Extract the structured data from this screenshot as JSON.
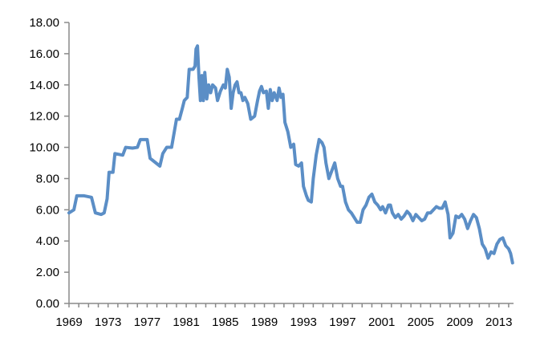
{
  "chart_data": {
    "type": "line",
    "title": "",
    "xlabel": "",
    "ylabel": "",
    "ylim": [
      0,
      18
    ],
    "xlim": [
      1969,
      2014.5
    ],
    "grid": false,
    "legend": "none",
    "y_ticks": [
      "0.00",
      "2.00",
      "4.00",
      "6.00",
      "8.00",
      "10.00",
      "12.00",
      "14.00",
      "16.00",
      "18.00"
    ],
    "x_ticks": [
      "1969",
      "1973",
      "1977",
      "1981",
      "1985",
      "1989",
      "1993",
      "1997",
      "2001",
      "2005",
      "2009",
      "2013"
    ],
    "series": [
      {
        "color": "#5b8ec6",
        "points": [
          [
            1969.0,
            5.8
          ],
          [
            1969.5,
            6.0
          ],
          [
            1969.8,
            6.9
          ],
          [
            1970.5,
            6.9
          ],
          [
            1971.3,
            6.8
          ],
          [
            1971.7,
            5.8
          ],
          [
            1972.3,
            5.7
          ],
          [
            1972.6,
            5.8
          ],
          [
            1972.9,
            6.7
          ],
          [
            1973.1,
            8.4
          ],
          [
            1973.5,
            8.4
          ],
          [
            1973.7,
            9.6
          ],
          [
            1974.5,
            9.5
          ],
          [
            1974.8,
            10.0
          ],
          [
            1975.5,
            9.95
          ],
          [
            1976.0,
            10.0
          ],
          [
            1976.3,
            10.5
          ],
          [
            1977.0,
            10.5
          ],
          [
            1977.3,
            9.3
          ],
          [
            1977.9,
            9.0
          ],
          [
            1978.3,
            8.8
          ],
          [
            1978.6,
            9.6
          ],
          [
            1979.0,
            10.0
          ],
          [
            1979.5,
            10.0
          ],
          [
            1980.0,
            11.8
          ],
          [
            1980.3,
            11.8
          ],
          [
            1980.6,
            12.5
          ],
          [
            1980.8,
            13.0
          ],
          [
            1981.1,
            13.2
          ],
          [
            1981.3,
            15.0
          ],
          [
            1981.7,
            15.0
          ],
          [
            1981.9,
            15.2
          ],
          [
            1982.0,
            16.3
          ],
          [
            1982.15,
            16.5
          ],
          [
            1982.3,
            14.5
          ],
          [
            1982.45,
            13.0
          ],
          [
            1982.6,
            14.6
          ],
          [
            1982.75,
            13.0
          ],
          [
            1982.9,
            14.8
          ],
          [
            1983.1,
            13.1
          ],
          [
            1983.3,
            14.0
          ],
          [
            1983.5,
            13.5
          ],
          [
            1983.7,
            14.0
          ],
          [
            1984.0,
            13.8
          ],
          [
            1984.2,
            13.0
          ],
          [
            1984.5,
            13.6
          ],
          [
            1984.8,
            14.0
          ],
          [
            1985.0,
            13.8
          ],
          [
            1985.2,
            15.0
          ],
          [
            1985.4,
            14.5
          ],
          [
            1985.6,
            12.5
          ],
          [
            1985.8,
            13.5
          ],
          [
            1986.0,
            14.0
          ],
          [
            1986.2,
            14.2
          ],
          [
            1986.4,
            13.5
          ],
          [
            1986.6,
            13.5
          ],
          [
            1986.8,
            13.0
          ],
          [
            1987.0,
            13.2
          ],
          [
            1987.3,
            12.8
          ],
          [
            1987.6,
            11.8
          ],
          [
            1988.0,
            12.0
          ],
          [
            1988.3,
            13.0
          ],
          [
            1988.5,
            13.6
          ],
          [
            1988.7,
            13.9
          ],
          [
            1988.9,
            13.5
          ],
          [
            1989.2,
            13.6
          ],
          [
            1989.4,
            12.5
          ],
          [
            1989.6,
            13.7
          ],
          [
            1989.8,
            13.0
          ],
          [
            1990.0,
            13.5
          ],
          [
            1990.3,
            13.0
          ],
          [
            1990.5,
            13.8
          ],
          [
            1990.7,
            13.2
          ],
          [
            1990.9,
            13.4
          ],
          [
            1991.1,
            11.6
          ],
          [
            1991.4,
            11.0
          ],
          [
            1991.7,
            10.0
          ],
          [
            1992.0,
            10.2
          ],
          [
            1992.2,
            8.9
          ],
          [
            1992.5,
            8.8
          ],
          [
            1992.8,
            9.0
          ],
          [
            1993.0,
            7.5
          ],
          [
            1993.3,
            6.9
          ],
          [
            1993.5,
            6.6
          ],
          [
            1993.8,
            6.5
          ],
          [
            1994.0,
            8.0
          ],
          [
            1994.3,
            9.5
          ],
          [
            1994.6,
            10.5
          ],
          [
            1994.9,
            10.3
          ],
          [
            1995.1,
            10.0
          ],
          [
            1995.3,
            9.0
          ],
          [
            1995.6,
            8.0
          ],
          [
            1995.9,
            8.5
          ],
          [
            1996.2,
            9.0
          ],
          [
            1996.5,
            8.0
          ],
          [
            1996.8,
            7.5
          ],
          [
            1997.0,
            7.5
          ],
          [
            1997.3,
            6.5
          ],
          [
            1997.6,
            6.0
          ],
          [
            1997.9,
            5.8
          ],
          [
            1998.2,
            5.5
          ],
          [
            1998.5,
            5.2
          ],
          [
            1998.8,
            5.2
          ],
          [
            1999.1,
            6.0
          ],
          [
            1999.4,
            6.3
          ],
          [
            1999.7,
            6.8
          ],
          [
            2000.0,
            7.0
          ],
          [
            2000.3,
            6.5
          ],
          [
            2000.6,
            6.3
          ],
          [
            2000.9,
            6.0
          ],
          [
            2001.1,
            6.2
          ],
          [
            2001.4,
            5.8
          ],
          [
            2001.7,
            6.3
          ],
          [
            2001.9,
            6.3
          ],
          [
            2002.1,
            5.8
          ],
          [
            2002.4,
            5.5
          ],
          [
            2002.7,
            5.7
          ],
          [
            2003.0,
            5.4
          ],
          [
            2003.3,
            5.6
          ],
          [
            2003.6,
            5.9
          ],
          [
            2003.9,
            5.7
          ],
          [
            2004.2,
            5.3
          ],
          [
            2004.5,
            5.7
          ],
          [
            2004.8,
            5.5
          ],
          [
            2005.1,
            5.3
          ],
          [
            2005.4,
            5.4
          ],
          [
            2005.7,
            5.8
          ],
          [
            2006.0,
            5.8
          ],
          [
            2006.3,
            6.0
          ],
          [
            2006.6,
            6.2
          ],
          [
            2006.9,
            6.1
          ],
          [
            2007.2,
            6.1
          ],
          [
            2007.5,
            6.5
          ],
          [
            2007.8,
            5.7
          ],
          [
            2008.0,
            4.2
          ],
          [
            2008.3,
            4.5
          ],
          [
            2008.6,
            5.6
          ],
          [
            2008.9,
            5.5
          ],
          [
            2009.2,
            5.7
          ],
          [
            2009.5,
            5.4
          ],
          [
            2009.8,
            4.8
          ],
          [
            2010.1,
            5.3
          ],
          [
            2010.4,
            5.7
          ],
          [
            2010.7,
            5.5
          ],
          [
            2011.0,
            4.8
          ],
          [
            2011.3,
            3.8
          ],
          [
            2011.6,
            3.5
          ],
          [
            2011.9,
            2.9
          ],
          [
            2012.2,
            3.3
          ],
          [
            2012.5,
            3.2
          ],
          [
            2012.8,
            3.8
          ],
          [
            2013.1,
            4.1
          ],
          [
            2013.4,
            4.2
          ],
          [
            2013.7,
            3.7
          ],
          [
            2014.0,
            3.5
          ],
          [
            2014.2,
            3.2
          ],
          [
            2014.4,
            2.6
          ]
        ]
      }
    ]
  }
}
